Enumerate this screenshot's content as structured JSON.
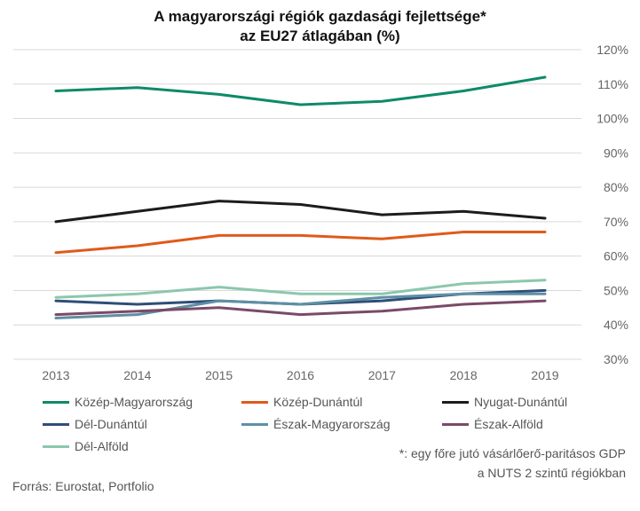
{
  "title_line1": "A magyarországi régiók gazdasági fejlettsége*",
  "title_line2": "az EU27 átlagában (%)",
  "note_line1": "*: egy főre jutó vásárlőerő-paritásos GDP",
  "note_line2": "a NUTS 2 szintű régiókban",
  "source": "Forrás: Eurostat, Portfolio",
  "chart_data": {
    "type": "line",
    "x": [
      "2013",
      "2014",
      "2015",
      "2016",
      "2017",
      "2018",
      "2019"
    ],
    "y_ticks": [
      "30%",
      "40%",
      "50%",
      "60%",
      "70%",
      "80%",
      "90%",
      "100%",
      "110%",
      "120%"
    ],
    "ylim": [
      30,
      120
    ],
    "grid": true,
    "y_axis_side": "right",
    "legend_position": "bottom",
    "series": [
      {
        "name": "Közép-Magyarország",
        "color": "#0f8a68",
        "values": [
          108,
          109,
          107,
          104,
          105,
          108,
          112
        ]
      },
      {
        "name": "Közép-Dunántúl",
        "color": "#e05a1a",
        "values": [
          61,
          63,
          66,
          66,
          65,
          67,
          67
        ]
      },
      {
        "name": "Nyugat-Dunántúl",
        "color": "#1c1c1c",
        "values": [
          70,
          73,
          76,
          75,
          72,
          73,
          71
        ]
      },
      {
        "name": "Dél-Dunántúl",
        "color": "#2f4e78",
        "values": [
          47,
          46,
          47,
          46,
          47,
          49,
          50
        ]
      },
      {
        "name": "Észak-Magyarország",
        "color": "#5f8fa5",
        "values": [
          42,
          43,
          47,
          46,
          48,
          49,
          49
        ]
      },
      {
        "name": "Észak-Alföld",
        "color": "#7a4a68",
        "values": [
          43,
          44,
          45,
          43,
          44,
          46,
          47
        ]
      },
      {
        "name": "Dél-Alföld",
        "color": "#8cc7ad",
        "values": [
          48,
          49,
          51,
          49,
          49,
          52,
          53
        ]
      }
    ]
  }
}
